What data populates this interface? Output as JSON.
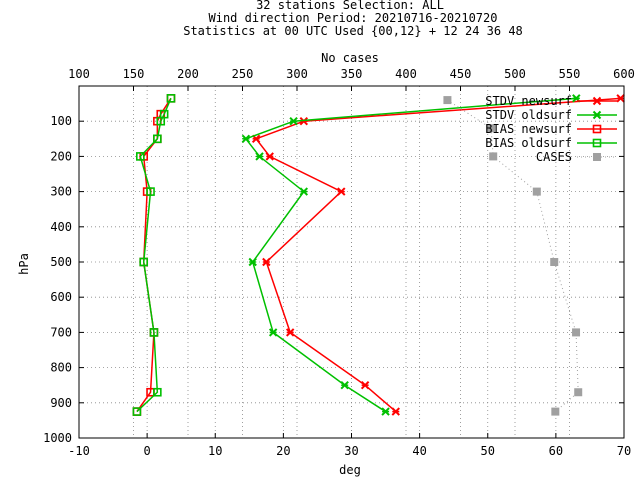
{
  "title_lines": [
    "32 stations Selection: ALL",
    "Wind direction  Period: 20210716-20210720",
    "Statistics at 00 UTC  Used {00,12} + 12 24 36 48"
  ],
  "chart_data": {
    "type": "line",
    "xlabel": "deg",
    "ylabel": "hPa",
    "x2label": "No cases",
    "xlim": [
      -10,
      70
    ],
    "x2lim": [
      100,
      600
    ],
    "ylim": [
      1000,
      20
    ],
    "y_inverted": true,
    "grid": true,
    "legend_position": "top-right",
    "x_ticks": [
      -10,
      0,
      10,
      20,
      30,
      40,
      50,
      60,
      70
    ],
    "x2_ticks": [
      100,
      150,
      200,
      250,
      300,
      350,
      400,
      450,
      500,
      550,
      600
    ],
    "y_ticks": [
      100,
      200,
      300,
      400,
      500,
      600,
      700,
      800,
      900,
      1000
    ],
    "series": [
      {
        "name": "STDV newsurf",
        "axis": "x",
        "color": "#ff0000",
        "marker": "x",
        "points": [
          [
            69.5,
            35
          ],
          [
            23.0,
            100
          ],
          [
            16.0,
            150
          ],
          [
            18.0,
            200
          ],
          [
            28.5,
            300
          ],
          [
            17.5,
            500
          ],
          [
            21.0,
            700
          ],
          [
            32.0,
            850
          ],
          [
            36.5,
            925
          ]
        ]
      },
      {
        "name": "STDV oldsurf",
        "axis": "x",
        "color": "#00c000",
        "marker": "x",
        "points": [
          [
            63.0,
            35
          ],
          [
            21.5,
            100
          ],
          [
            14.5,
            150
          ],
          [
            16.5,
            200
          ],
          [
            23.0,
            300
          ],
          [
            15.5,
            500
          ],
          [
            18.5,
            700
          ],
          [
            29.0,
            850
          ],
          [
            35.0,
            925
          ]
        ]
      },
      {
        "name": "BIAS newsurf",
        "axis": "x",
        "color": "#ff0000",
        "marker": "open-square",
        "points": [
          [
            3.5,
            35
          ],
          [
            2.0,
            80
          ],
          [
            1.5,
            100
          ],
          [
            1.5,
            150
          ],
          [
            -0.5,
            200
          ],
          [
            0,
            300
          ],
          [
            -0.5,
            500
          ],
          [
            1.0,
            700
          ],
          [
            0.5,
            870
          ],
          [
            -1.5,
            925
          ]
        ]
      },
      {
        "name": "BIAS oldsurf",
        "axis": "x",
        "color": "#00c000",
        "marker": "open-square",
        "points": [
          [
            3.5,
            35
          ],
          [
            2.5,
            80
          ],
          [
            2.0,
            100
          ],
          [
            1.5,
            150
          ],
          [
            -1.0,
            200
          ],
          [
            0.5,
            300
          ],
          [
            -0.5,
            500
          ],
          [
            1.0,
            700
          ],
          [
            1.5,
            870
          ],
          [
            -1.5,
            925
          ]
        ]
      },
      {
        "name": "CASES",
        "axis": "x2",
        "color": "#a0a0a0",
        "marker": "filled-square",
        "points": [
          [
            438,
            40
          ],
          [
            478,
            120
          ],
          [
            480,
            200
          ],
          [
            520,
            300
          ],
          [
            536,
            500
          ],
          [
            556,
            700
          ],
          [
            558,
            870
          ],
          [
            537,
            925
          ]
        ]
      }
    ]
  }
}
